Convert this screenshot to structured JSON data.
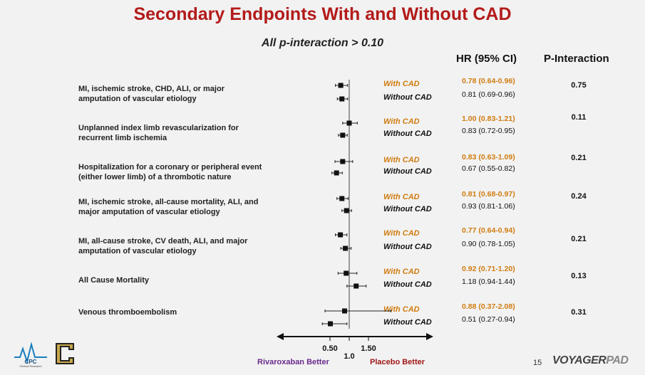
{
  "title": "Secondary Endpoints With and Without CAD",
  "subtitle": "All p-interaction > 0.10",
  "headers": {
    "hr": "HR (95% CI)",
    "p": "P-Interaction"
  },
  "group_labels": {
    "cad": "With CAD",
    "nocad": "Without CAD"
  },
  "colors": {
    "title": "#b31b1b",
    "cad": "#d07c10",
    "favor_left": "#6a2a8c",
    "favor_right": "#a01818"
  },
  "chart_data": {
    "type": "forest",
    "x_axis": {
      "ticks": [
        0.5,
        1.0,
        1.5
      ],
      "tick_labels": [
        "0.50",
        "1.0",
        "1.50"
      ],
      "reference": 1.0,
      "scale": "linear"
    },
    "favor_left": "Rivaroxaban Better",
    "favor_right": "Placebo Better",
    "endpoints": [
      {
        "label_lines": [
          "MI, ischemic stroke, CHD, ALI, or major",
          "amputation of vascular etiology"
        ],
        "p_interaction": "0.75",
        "cad": {
          "hr": 0.78,
          "lo": 0.64,
          "hi": 0.96,
          "text": "0.78 (0.64-0.96)"
        },
        "nocad": {
          "hr": 0.81,
          "lo": 0.69,
          "hi": 0.96,
          "text": "0.81 (0.69-0.96)"
        }
      },
      {
        "label_lines": [
          "Unplanned index limb revascularization for",
          "recurrent limb ischemia"
        ],
        "p_interaction": "0.11",
        "cad": {
          "hr": 1.0,
          "lo": 0.83,
          "hi": 1.21,
          "text": "1.00 (0.83-1.21)"
        },
        "nocad": {
          "hr": 0.83,
          "lo": 0.72,
          "hi": 0.95,
          "text": "0.83 (0.72-0.95)"
        }
      },
      {
        "label_lines": [
          "Hospitalization for a coronary or peripheral event",
          "(either lower limb) of a thrombotic nature"
        ],
        "p_interaction": "0.21",
        "cad": {
          "hr": 0.83,
          "lo": 0.63,
          "hi": 1.09,
          "text": "0.83 (0.63-1.09)"
        },
        "nocad": {
          "hr": 0.67,
          "lo": 0.55,
          "hi": 0.82,
          "text": "0.67 (0.55-0.82)"
        }
      },
      {
        "label_lines": [
          "MI, ischemic stroke, all-cause mortality, ALI, and",
          "major amputation of vascular etiology"
        ],
        "p_interaction": "0.24",
        "cad": {
          "hr": 0.81,
          "lo": 0.68,
          "hi": 0.97,
          "text": "0.81 (0.68-0.97)"
        },
        "nocad": {
          "hr": 0.93,
          "lo": 0.81,
          "hi": 1.06,
          "text": "0.93 (0.81-1.06)"
        }
      },
      {
        "label_lines": [
          "MI, all-cause stroke, CV death, ALI, and major",
          "amputation of vascular etiology"
        ],
        "p_interaction": "0.21",
        "cad": {
          "hr": 0.77,
          "lo": 0.64,
          "hi": 0.94,
          "text": "0.77 (0.64-0.94)"
        },
        "nocad": {
          "hr": 0.9,
          "lo": 0.78,
          "hi": 1.05,
          "text": "0.90 (0.78-1.05)"
        }
      },
      {
        "label_lines": [
          "All Cause Mortality"
        ],
        "p_interaction": "0.13",
        "cad": {
          "hr": 0.92,
          "lo": 0.71,
          "hi": 1.2,
          "text": "0.92 (0.71-1.20)"
        },
        "nocad": {
          "hr": 1.18,
          "lo": 0.94,
          "hi": 1.44,
          "text": "1.18 (0.94-1.44)"
        }
      },
      {
        "label_lines": [
          "Venous thromboembolism"
        ],
        "p_interaction": "0.31",
        "cad": {
          "hr": 0.88,
          "lo": 0.37,
          "hi": 2.08,
          "text": "0.88 (0.37-2.08)"
        },
        "nocad": {
          "hr": 0.51,
          "lo": 0.27,
          "hi": 0.94,
          "text": "0.51 (0.27-0.94)"
        }
      }
    ]
  },
  "footer": {
    "page_number": "15",
    "logo_cpc_text": "CPC",
    "logo_cpc_sub": "Clinical Research",
    "brand_main": "VOYAGER",
    "brand_pad": "PAD"
  }
}
